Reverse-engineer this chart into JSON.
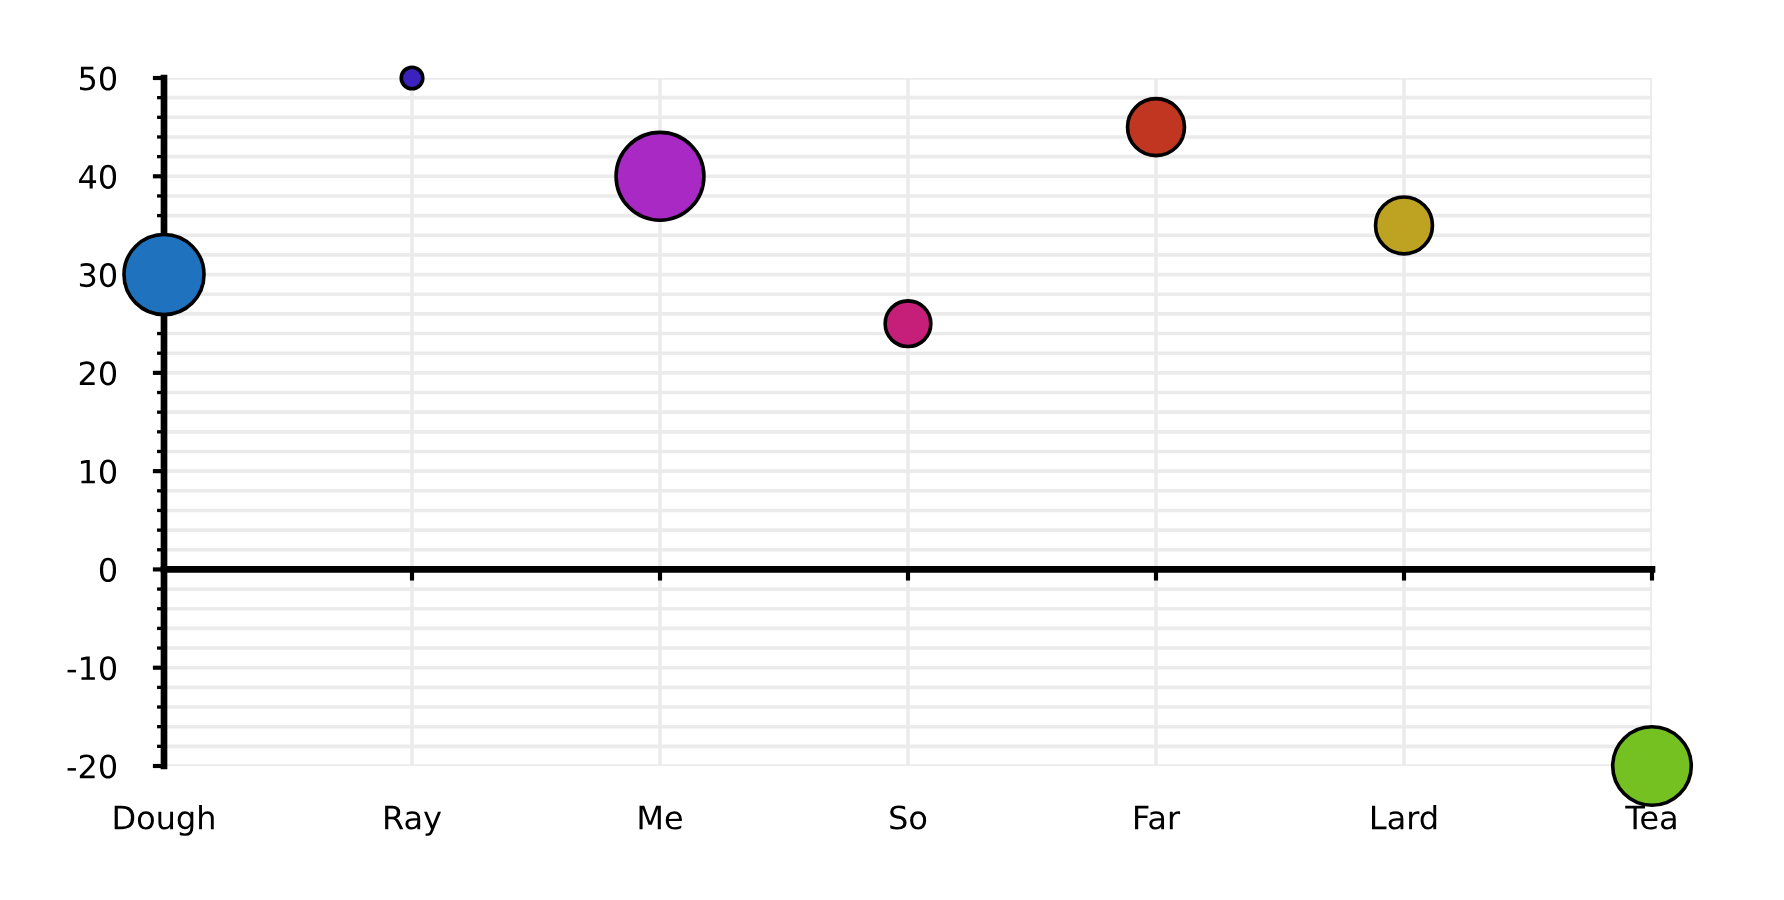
{
  "chart_data": {
    "type": "bubble",
    "categories": [
      "Dough",
      "Ray",
      "Me",
      "So",
      "Far",
      "Lard",
      "Tea"
    ],
    "values": [
      30,
      50,
      40,
      25,
      45,
      35,
      -20
    ],
    "sizes": [
      0.83,
      0.06,
      1,
      0.27,
      0.42,
      0.42,
      0.8
    ],
    "colors": [
      "#1f73be",
      "#3b22bf",
      "#a829c4",
      "#c51f7a",
      "#c03620",
      "#bea221",
      "#74c121"
    ],
    "ylim": [
      -20,
      50
    ],
    "yticks": [
      -20,
      {
        "value": -18,
        "label": null
      },
      {
        "value": -16,
        "label": null
      },
      {
        "value": -14,
        "label": null
      },
      {
        "value": -12,
        "label": null
      },
      -10,
      {
        "value": -8,
        "label": null
      },
      {
        "value": -6,
        "label": null
      },
      {
        "value": -4,
        "label": null
      },
      {
        "value": -2,
        "label": null
      },
      0,
      {
        "value": 2,
        "label": null
      },
      {
        "value": 4,
        "label": null
      },
      {
        "value": 6,
        "label": null
      },
      {
        "value": 8,
        "label": null
      },
      10,
      {
        "value": 12,
        "label": null
      },
      {
        "value": 14,
        "label": null
      },
      {
        "value": 16,
        "label": null
      },
      {
        "value": 18,
        "label": null
      },
      20,
      {
        "value": 22,
        "label": null
      },
      {
        "value": 24,
        "label": null
      },
      {
        "value": 26,
        "label": null
      },
      {
        "value": 28,
        "label": null
      },
      30,
      {
        "value": 32,
        "label": null
      },
      {
        "value": 34,
        "label": null
      },
      {
        "value": 36,
        "label": null
      },
      {
        "value": 38,
        "label": null
      },
      40,
      {
        "value": 42,
        "label": null
      },
      {
        "value": 44,
        "label": null
      },
      {
        "value": 46,
        "label": null
      },
      {
        "value": 48,
        "label": null
      },
      50
    ],
    "grid": true
  }
}
